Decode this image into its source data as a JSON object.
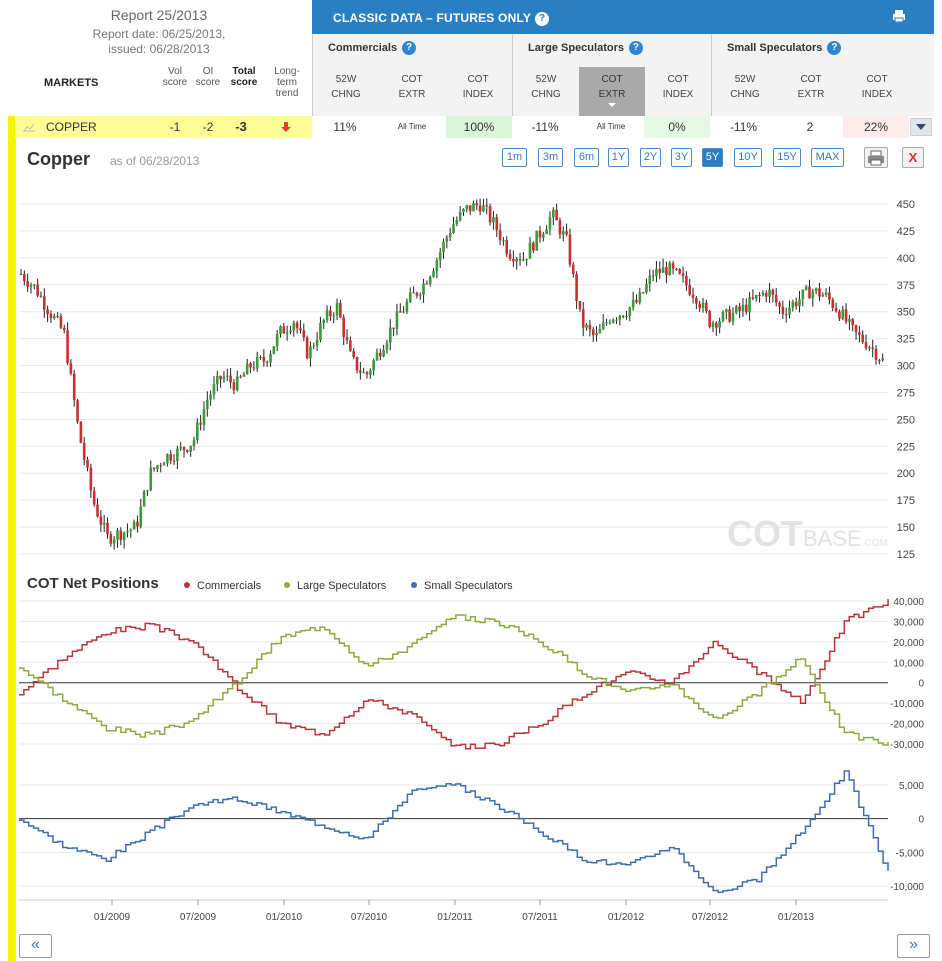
{
  "report": {
    "title": "Report 25/2013",
    "date": "Report date: 06/25/2013,",
    "issued": "issued: 06/28/2013"
  },
  "left_header": {
    "markets": "MARKETS",
    "vol1": "Vol",
    "vol2": "score",
    "oi1": "OI",
    "oi2": "score",
    "total1": "Total",
    "total2": "score",
    "long1": "Long-",
    "long2": "term",
    "long3": "trend"
  },
  "classic": {
    "title": "CLASSIC DATA – FUTURES ONLY",
    "help": "?"
  },
  "groups": [
    {
      "label": "Commercials",
      "cols": [
        [
          "52W",
          "CHNG"
        ],
        [
          "COT",
          "EXTR"
        ],
        [
          "COT",
          "INDEX"
        ]
      ]
    },
    {
      "label": "Large Speculators",
      "cols": [
        [
          "52W",
          "CHNG"
        ],
        [
          "COT",
          "EXTR"
        ],
        [
          "COT",
          "INDEX"
        ]
      ]
    },
    {
      "label": "Small Speculators",
      "cols": [
        [
          "52W",
          "CHNG"
        ],
        [
          "COT",
          "EXTR"
        ],
        [
          "COT",
          "INDEX"
        ]
      ]
    }
  ],
  "market_row": {
    "name": "COPPER",
    "vol": "-1",
    "oi": "-2",
    "total": "-3",
    "trend": "down",
    "values": [
      "11%",
      "All Time",
      "100%",
      "-11%",
      "All Time",
      "0%",
      "-11%",
      "2",
      "22%"
    ],
    "value_colors": [
      "#ffffff",
      "#ffffff",
      "#d8f5d8",
      "#ffffff",
      "#ffffff",
      "#e6f9e6",
      "#ffffff",
      "#ffffff",
      "#fdecec"
    ]
  },
  "chart": {
    "title": "Copper",
    "asof": "as of 06/28/2013",
    "ranges": [
      "1m",
      "3m",
      "6m",
      "1Y",
      "2Y",
      "3Y",
      "5Y",
      "10Y",
      "15Y",
      "MAX"
    ],
    "active_range": "5Y",
    "price_ticks": [
      "450",
      "425",
      "400",
      "375",
      "350",
      "325",
      "300",
      "275",
      "250",
      "225",
      "200",
      "175",
      "150",
      "125"
    ],
    "watermark_a": "COT",
    "watermark_b": "BASE",
    "watermark_c": ".COM",
    "net_title": "COT Net Positions",
    "legend": [
      {
        "name": "Commercials",
        "color": "#b8353a"
      },
      {
        "name": "Large Speculators",
        "color": "#8cab3e"
      },
      {
        "name": "Small Speculators",
        "color": "#3c6fb0"
      }
    ],
    "net_ticks": [
      "40,000",
      "30,000",
      "20,000",
      "10,000",
      "0",
      "-10,000",
      "-20,000",
      "-30,000"
    ],
    "small_ticks": [
      "5,000",
      "0",
      "-5,000",
      "-10,000"
    ],
    "dates": [
      "01/2009",
      "07/2009",
      "01/2010",
      "07/2010",
      "01/2011",
      "07/2011",
      "01/2012",
      "07/2012",
      "01/2013"
    ]
  },
  "chart_data": [
    {
      "type": "line",
      "title": "Copper",
      "ylim": [
        125,
        455
      ],
      "x": [
        "2008-06",
        "2008-07",
        "2008-08",
        "2008-09",
        "2008-10",
        "2008-11",
        "2008-12",
        "2009-01",
        "2009-02",
        "2009-03",
        "2009-04",
        "2009-05",
        "2009-06",
        "2009-07",
        "2009-08",
        "2009-09",
        "2009-10",
        "2009-11",
        "2009-12",
        "2010-01",
        "2010-02",
        "2010-03",
        "2010-04",
        "2010-05",
        "2010-06",
        "2010-07",
        "2010-08",
        "2010-09",
        "2010-10",
        "2010-11",
        "2010-12",
        "2011-01",
        "2011-02",
        "2011-03",
        "2011-04",
        "2011-05",
        "2011-06",
        "2011-07",
        "2011-08",
        "2011-09",
        "2011-10",
        "2011-11",
        "2011-12",
        "2012-01",
        "2012-02",
        "2012-03",
        "2012-04",
        "2012-05",
        "2012-06",
        "2012-07",
        "2012-08",
        "2012-09",
        "2012-10",
        "2012-11",
        "2012-12",
        "2013-01",
        "2013-02",
        "2013-03",
        "2013-04",
        "2013-05",
        "2013-06"
      ],
      "series": [
        {
          "name": "Copper",
          "values": [
            385,
            372,
            350,
            330,
            240,
            175,
            140,
            145,
            150,
            200,
            215,
            220,
            230,
            270,
            290,
            282,
            300,
            305,
            330,
            342,
            310,
            340,
            355,
            305,
            290,
            315,
            340,
            360,
            375,
            400,
            430,
            445,
            450,
            430,
            405,
            400,
            420,
            440,
            415,
            340,
            325,
            345,
            350,
            360,
            385,
            390,
            380,
            365,
            340,
            345,
            350,
            360,
            370,
            350,
            360,
            370,
            365,
            350,
            330,
            320,
            305
          ]
        }
      ]
    },
    {
      "type": "line",
      "title": "COT Net Positions",
      "ylim": [
        -35000,
        42000
      ],
      "x": [
        "2008-06",
        "2008-09",
        "2008-12",
        "2009-03",
        "2009-06",
        "2009-09",
        "2009-12",
        "2010-03",
        "2010-06",
        "2010-09",
        "2010-12",
        "2011-03",
        "2011-06",
        "2011-09",
        "2011-12",
        "2012-03",
        "2012-06",
        "2012-09",
        "2012-12",
        "2013-03",
        "2013-06"
      ],
      "series": [
        {
          "name": "Commercials",
          "values": [
            -5000,
            12000,
            25000,
            28000,
            20000,
            -2000,
            -20000,
            -25000,
            -8000,
            -15000,
            -32000,
            -30000,
            -20000,
            -5000,
            5000,
            0,
            20000,
            5000,
            -10000,
            30000,
            40000
          ]
        },
        {
          "name": "Large Speculators",
          "values": [
            8000,
            -8000,
            -22000,
            -26000,
            -18000,
            0,
            22000,
            28000,
            8000,
            18000,
            32000,
            30000,
            20000,
            5000,
            -5000,
            0,
            -18000,
            -5000,
            12000,
            -25000,
            -30000
          ]
        }
      ]
    },
    {
      "type": "line",
      "title": "Small Speculators",
      "ylim": [
        -12000,
        8000
      ],
      "x": [
        "2008-06",
        "2008-09",
        "2008-12",
        "2009-03",
        "2009-06",
        "2009-09",
        "2009-12",
        "2010-03",
        "2010-06",
        "2010-09",
        "2010-12",
        "2011-03",
        "2011-06",
        "2011-09",
        "2011-12",
        "2012-03",
        "2012-06",
        "2012-09",
        "2012-12",
        "2013-03",
        "2013-06"
      ],
      "series": [
        {
          "name": "Small Speculators",
          "values": [
            0,
            -4000,
            -6000,
            -2000,
            2000,
            3000,
            1000,
            -1000,
            -3000,
            4000,
            5000,
            2000,
            -2000,
            -6000,
            -7000,
            -4000,
            -11000,
            -9000,
            -2000,
            7000,
            -8000
          ]
        }
      ]
    }
  ]
}
